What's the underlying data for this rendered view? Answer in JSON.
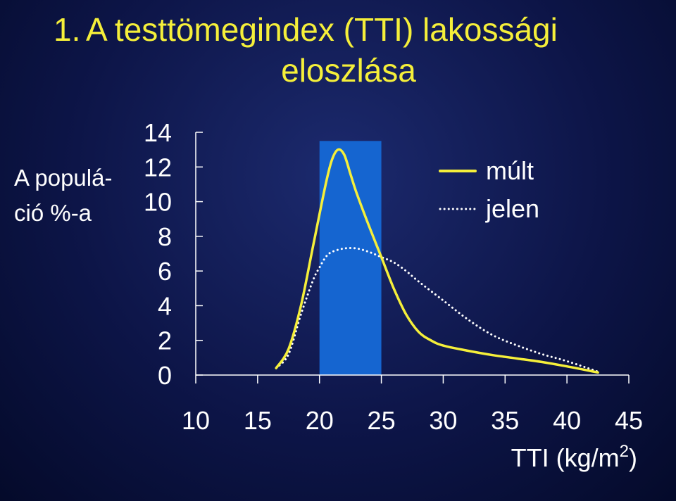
{
  "title": {
    "number": "1.",
    "line1": "A testtömegindex (TTI) lakossági",
    "line2": "eloszlása"
  },
  "colors": {
    "background": "#0d1548",
    "title": "#f5ef3a",
    "mult_series": "#f5ef3a",
    "jelen_series": "#ffffff",
    "highlight_band": "#1565d0",
    "axis": "#ffffff",
    "text": "#ffffff"
  },
  "chart_data": {
    "type": "line",
    "title": "1.A testtömegindex (TTI) lakossági eloszlása",
    "ylabel_lines": [
      "A populá-",
      "ció %-a"
    ],
    "xlabel": "TTI (kg/m",
    "xlabel_sup": "2",
    "xlabel_close": ")",
    "xlim": [
      10,
      45
    ],
    "ylim": [
      0,
      14
    ],
    "xticks": [
      10,
      15,
      20,
      25,
      30,
      35,
      40,
      45
    ],
    "yticks": [
      0,
      2,
      4,
      6,
      8,
      10,
      12,
      14
    ],
    "highlight_band": {
      "x_from": 20,
      "x_to": 25,
      "y_to": 13.5
    },
    "grid": false,
    "legend_position": "top-right",
    "series": [
      {
        "name": "múlt",
        "style": "solid",
        "x": [
          16.5,
          17.5,
          18.5,
          19.5,
          20.5,
          21.0,
          21.5,
          22.0,
          22.5,
          23.0,
          24.0,
          25.0,
          26.0,
          27.0,
          28.0,
          29.0,
          30.0,
          32.0,
          34.0,
          36.0,
          38.0,
          40.0,
          42.5
        ],
        "y": [
          0.4,
          1.5,
          4.0,
          7.5,
          11.0,
          12.4,
          13.0,
          12.7,
          11.6,
          10.5,
          8.6,
          6.8,
          5.0,
          3.5,
          2.5,
          2.0,
          1.7,
          1.4,
          1.15,
          0.95,
          0.75,
          0.5,
          0.15
        ]
      },
      {
        "name": "jelen",
        "style": "dotted",
        "x": [
          16.5,
          17.5,
          18.5,
          19.5,
          20.0,
          20.5,
          21.0,
          22.0,
          23.0,
          24.0,
          25.0,
          26.0,
          27.0,
          28.0,
          30.0,
          32.0,
          34.0,
          36.0,
          38.0,
          40.0,
          42.5
        ],
        "y": [
          0.4,
          1.2,
          3.5,
          5.5,
          6.2,
          6.8,
          7.1,
          7.3,
          7.3,
          7.1,
          6.8,
          6.5,
          6.0,
          5.4,
          4.3,
          3.2,
          2.3,
          1.7,
          1.2,
          0.8,
          0.2
        ]
      }
    ]
  }
}
